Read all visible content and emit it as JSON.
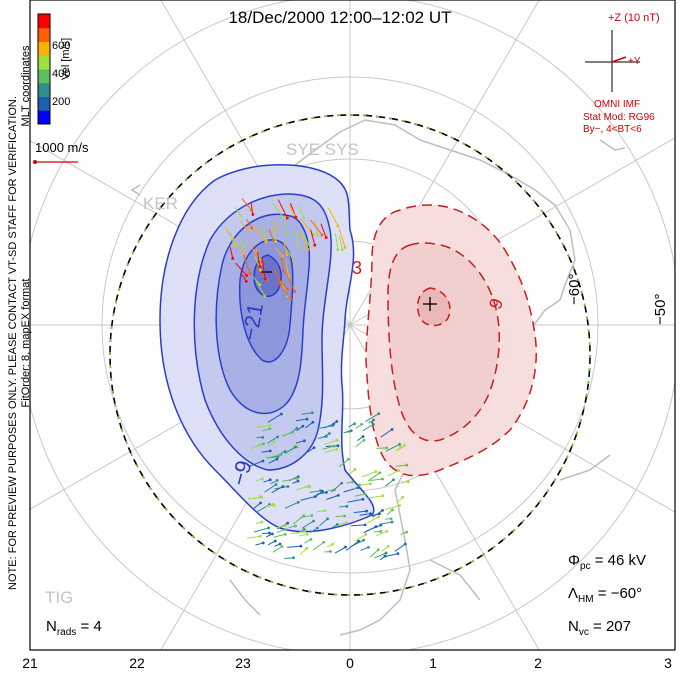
{
  "title": "18/Dec/2000 12:00–12:02 UT",
  "watermark_note": "NOTE: FOR PREVIEW PURPOSES ONLY. PLEASE CONTACT VT-SD STAFF FOR VERIFICATION.",
  "fit_order": "FitOrder: 8, mapEX format",
  "coordinates_label": "MLT coordinates",
  "velocity_scale": {
    "label": "Vel [m/s]",
    "ticks": [
      "600",
      "400",
      "200"
    ],
    "colors": [
      "#0000ff",
      "#1f5fb0",
      "#2f8f8f",
      "#5fbf5f",
      "#9fdf3f",
      "#ffb000",
      "#ff6000",
      "#ff0000"
    ]
  },
  "reference_vector": "1000 m/s",
  "imf": {
    "z_label": "+Z (10 nT)",
    "y_label": "+Y",
    "source": "OMNI IMF",
    "model": "Stat Mod: RG96",
    "bin": "By−, 4<BT<6"
  },
  "stations": [
    "SYE SYS",
    "KER",
    "TIG"
  ],
  "latitude_labels": [
    "−60°",
    "−50°"
  ],
  "mlt_ticks": [
    "21",
    "22",
    "23",
    "0",
    "1",
    "2",
    "3"
  ],
  "contour_labels": [
    "−21",
    "−9",
    "3",
    "9"
  ],
  "stats": {
    "phi_pc": "= 46 kV",
    "lambda_hm": "= −60°",
    "n_vc": "= 207",
    "n_rads": "= 4"
  },
  "colors": {
    "negative_cell": "#2a3fc8",
    "positive_cell": "#c81e1e",
    "boundary": "#000000",
    "grid": "#c8c8c8",
    "coastline": "#c0c0c0"
  }
}
